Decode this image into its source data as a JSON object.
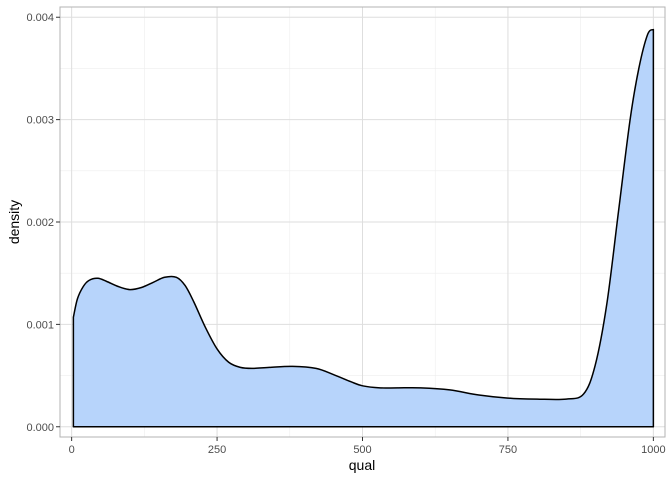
{
  "chart_data": {
    "type": "area",
    "title": "",
    "xlabel": "qual",
    "ylabel": "density",
    "xlim": [
      -20,
      1020
    ],
    "ylim": [
      -0.0001,
      0.0041
    ],
    "x_ticks": [
      0,
      250,
      500,
      750,
      1000
    ],
    "x_tick_labels": [
      "0",
      "250",
      "500",
      "750",
      "1000"
    ],
    "y_ticks": [
      0,
      0.001,
      0.002,
      0.003,
      0.004
    ],
    "y_tick_labels": [
      "0.000",
      "0.001",
      "0.002",
      "0.003",
      "0.004"
    ],
    "grid": true,
    "fill_color": "#b7d4fb",
    "line_color": "#000000",
    "series": [
      {
        "x": [
          3,
          10,
          20,
          30,
          45,
          60,
          80,
          100,
          120,
          140,
          160,
          180,
          195,
          210,
          230,
          250,
          270,
          290,
          310,
          340,
          380,
          420,
          450,
          480,
          500,
          530,
          560,
          600,
          650,
          700,
          750,
          800,
          850,
          880,
          900,
          920,
          940,
          960,
          975,
          990,
          1000
        ],
        "y": [
          0.00107,
          0.00125,
          0.00137,
          0.00143,
          0.00145,
          0.00142,
          0.00137,
          0.00134,
          0.00136,
          0.00141,
          0.00146,
          0.00146,
          0.00138,
          0.00122,
          0.00097,
          0.00076,
          0.00063,
          0.00058,
          0.00057,
          0.00058,
          0.00059,
          0.00057,
          0.00051,
          0.00044,
          0.0004,
          0.00038,
          0.00038,
          0.00038,
          0.00036,
          0.00031,
          0.00028,
          0.00027,
          0.00027,
          0.00032,
          0.0006,
          0.0012,
          0.0021,
          0.003,
          0.0035,
          0.00383,
          0.00388
        ]
      }
    ]
  }
}
